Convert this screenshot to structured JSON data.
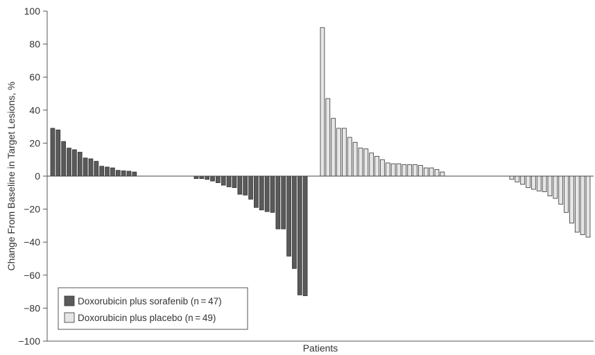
{
  "chart_data": {
    "type": "bar",
    "title": "",
    "xlabel": "Patients",
    "ylabel": "Change From Baseline in Target Lesions, %",
    "ylim": [
      -100,
      100
    ],
    "yticks": [
      -100,
      -80,
      -60,
      -40,
      -20,
      0,
      20,
      40,
      60,
      80,
      100
    ],
    "grid": false,
    "legend_position": "bottom-left",
    "colors": {
      "sorafenib": "#5a5a5a",
      "placebo": "#e6e6e6",
      "outline": "#333333",
      "axis": "#555555"
    },
    "series": [
      {
        "name": "Doxorubicin plus sorafenib (n = 47)",
        "values": [
          29,
          28,
          21,
          17,
          16,
          14.5,
          11,
          10.5,
          9,
          6,
          5.5,
          5,
          3.5,
          3.2,
          3,
          2.5,
          -1.5,
          -1.5,
          -2,
          -3,
          -4,
          -5.5,
          -6.5,
          -7,
          -11,
          -11.5,
          -14,
          -19,
          -20.5,
          -21.5,
          -22,
          -32,
          -32,
          -48.5,
          -56,
          -72,
          -72.5
        ]
      },
      {
        "name": "Doxorubicin plus placebo (n = 49)",
        "values": [
          90,
          47,
          35,
          29,
          29,
          23.5,
          20.5,
          17,
          16.5,
          14,
          12,
          10,
          8,
          7.5,
          7.5,
          7,
          7,
          7,
          6.5,
          5,
          5,
          4,
          2.5,
          -2,
          -3.5,
          -5,
          -7,
          -8,
          -9,
          -9.5,
          -12,
          -13.5,
          -17,
          -22,
          -28.5,
          -34,
          -35.5,
          -37
        ]
      }
    ]
  }
}
